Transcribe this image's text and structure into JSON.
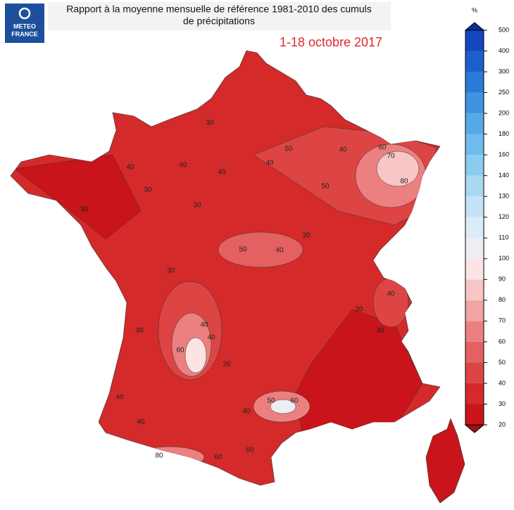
{
  "header": {
    "logo": [
      "METEO",
      "FRANCE"
    ],
    "title_lines": [
      "Rapport à la moyenne mensuelle de référence 1981-2010 des cumuls",
      "de précipitations"
    ],
    "date": "1-18 octobre 2017"
  },
  "colorbar": {
    "unit": "%",
    "ticks": [
      20,
      30,
      40,
      50,
      60,
      70,
      80,
      90,
      100,
      110,
      120,
      130,
      140,
      160,
      180,
      200,
      250,
      300,
      400,
      500
    ],
    "colors": [
      "#c8141a",
      "#d42a2a",
      "#dd4545",
      "#e56060",
      "#ec8080",
      "#f2a3a3",
      "#f8c6c6",
      "#fce4e4",
      "#eeeef2",
      "#dcebf8",
      "#c5e3f7",
      "#aad8f3",
      "#8ccbf0",
      "#6fbcec",
      "#55a9e6",
      "#3e94df",
      "#2a7ad6",
      "#1b5fcc",
      "#1446c0"
    ]
  },
  "contour_labels": [
    "30",
    "40",
    "40",
    "40",
    "30",
    "30",
    "30",
    "40",
    "50",
    "50",
    "40",
    "50",
    "60",
    "70",
    "80",
    "40",
    "30",
    "30",
    "40",
    "60",
    "40",
    "20",
    "30",
    "40",
    "60",
    "50",
    "40",
    "60",
    "80",
    "40",
    "60",
    "30",
    "40",
    "20"
  ]
}
